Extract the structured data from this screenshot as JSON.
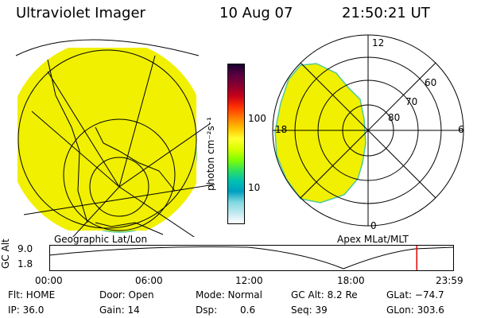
{
  "header": {
    "instrument": "Ultraviolet Imager",
    "date": "10 Aug 07",
    "time": "21:50:21 UT"
  },
  "left_panel": {
    "caption": "Geographic Lat/Lon"
  },
  "right_panel": {
    "caption": "Apex MLat/MLT",
    "mlt_labels": [
      "12",
      "18",
      "6",
      "0"
    ],
    "lat_labels": [
      "60",
      "70",
      "80"
    ]
  },
  "colorbar": {
    "unit_label": "photon cm⁻²s⁻¹",
    "ticks": [
      "100",
      "10"
    ],
    "colors": [
      "#1a0030",
      "#5a0040",
      "#8a0030",
      "#c8001a",
      "#ff3000",
      "#ff7a00",
      "#ffc000",
      "#ffff30",
      "#d8ff00",
      "#80ff00",
      "#30e060",
      "#00c0b0",
      "#00a0c0",
      "#80d8e0",
      "#c0e8f0",
      "#ffffff"
    ]
  },
  "altitude_plot": {
    "ylabel": "GC Alt",
    "yticks": [
      "9.0",
      "1.8"
    ],
    "xticks": [
      "00:00",
      "06:00",
      "12:00",
      "18:00",
      "23:59"
    ],
    "current_time_hours": 21.84
  },
  "status": {
    "flt": "Flt: HOME",
    "door": "Door: Open",
    "mode": "Mode: Normal",
    "gc_alt": "GC Alt: 8.2 Re",
    "glat": "GLat: −74.7",
    "ip": "IP: 36.0",
    "gain": "Gain: 14",
    "dsp_label": "Dsp:",
    "dsp_value": "0.6",
    "seq": "Seq: 39",
    "glon": "GLon: 303.6"
  },
  "colors": {
    "aurora_fill": "#f0f000",
    "aurora_edge": "#4fc8a0",
    "marker": "#e00000"
  }
}
